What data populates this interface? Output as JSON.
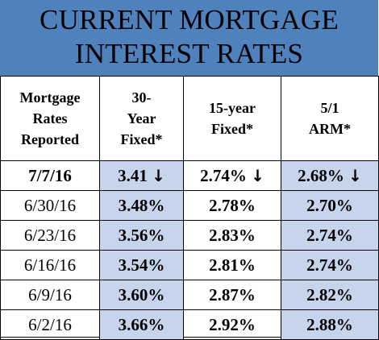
{
  "title": {
    "line1": "CURRENT MORTGAGE",
    "line2": "INTEREST RATES"
  },
  "headers": [
    [
      "Mortgage",
      "Rates",
      "Reported"
    ],
    [
      "30-",
      "Year",
      "Fixed*"
    ],
    [
      "15-year",
      "Fixed*"
    ],
    [
      "5/1",
      "ARM*"
    ]
  ],
  "latest": {
    "date": "7/7/16",
    "rate30": "3.41",
    "rate15": "2.74%",
    "arm": "2.68%",
    "arrow": "↓"
  },
  "rows": [
    {
      "date": "6/30/16",
      "rate30": "3.48%",
      "rate15": "2.78%",
      "arm": "2.70%"
    },
    {
      "date": "6/23/16",
      "rate30": "3.56%",
      "rate15": "2.83%",
      "arm": "2.74%"
    },
    {
      "date": "6/16/16",
      "rate30": "3.54%",
      "rate15": "2.81%",
      "arm": "2.74%"
    },
    {
      "date": "6/9/16",
      "rate30": "3.60%",
      "rate15": "2.87%",
      "arm": "2.82%"
    },
    {
      "date": "6/2/16",
      "rate30": "3.66%",
      "rate15": "2.92%",
      "arm": "2.88%"
    }
  ],
  "colors": {
    "title_bg": "#4f81bd",
    "shade": "#c6d4ec"
  }
}
